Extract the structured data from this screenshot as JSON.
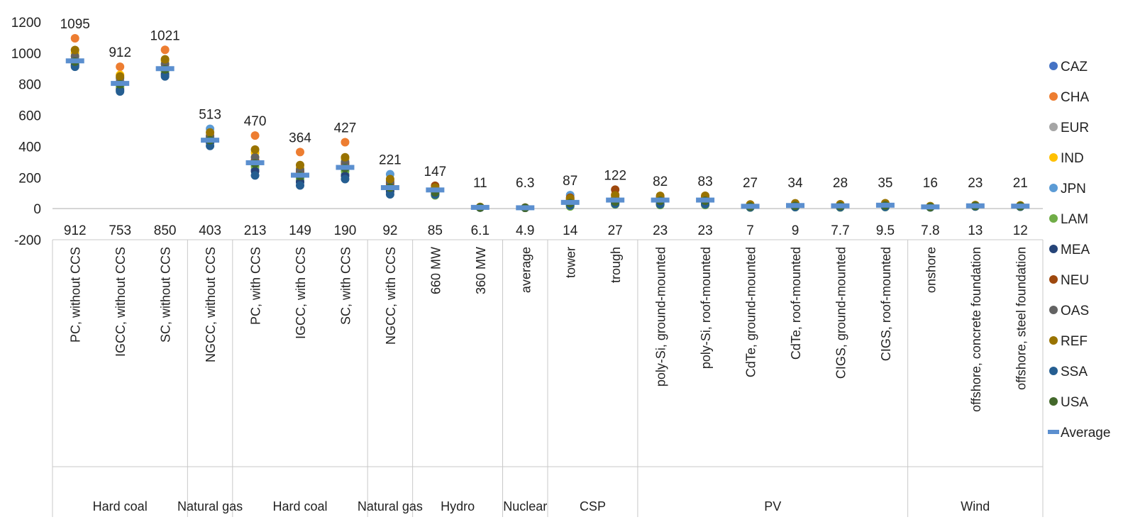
{
  "chart_data": {
    "type": "scatter",
    "ylim": [
      -200,
      1200
    ],
    "yticks": [
      -200,
      0,
      200,
      400,
      600,
      800,
      1000,
      1200
    ],
    "grid": false,
    "legend_position": "right",
    "categories": [
      "PC, without CCS",
      "IGCC, without CCS",
      "SC, without CCS",
      "NGCC, without CCS",
      "PC, with CCS",
      "IGCC, with CCS",
      "SC, with CCS",
      "NGCC, with CCS",
      "660 MW",
      "360 MW",
      "average",
      "tower",
      "trough",
      "poly-Si, ground-mounted",
      "poly-Si, roof-mounted",
      "CdTe, ground-mounted",
      "CdTe, roof-mounted",
      "CIGS, ground-mounted",
      "CIGS, roof-mounted",
      "onshore",
      "offshore, concrete foundation",
      "offshore, steel foundation"
    ],
    "groups": [
      {
        "label": "Hard coal",
        "count": 3
      },
      {
        "label": "Natural gas",
        "count": 1
      },
      {
        "label": "Hard coal",
        "count": 3
      },
      {
        "label": "Natural gas",
        "count": 1
      },
      {
        "label": "Hydro",
        "count": 2
      },
      {
        "label": "Nuclear",
        "count": 1
      },
      {
        "label": "CSP",
        "count": 2
      },
      {
        "label": "PV",
        "count": 6
      },
      {
        "label": "Wind",
        "count": 3
      }
    ],
    "max_labels": [
      "1095",
      "912",
      "1021",
      "513",
      "470",
      "364",
      "427",
      "221",
      "147",
      "11",
      "6.3",
      "87",
      "122",
      "82",
      "83",
      "27",
      "34",
      "28",
      "35",
      "16",
      "23",
      "21"
    ],
    "min_labels": [
      "912",
      "753",
      "850",
      "403",
      "213",
      "149",
      "190",
      "92",
      "85",
      "6.1",
      "4.9",
      "14",
      "27",
      "23",
      "23",
      "7",
      "9",
      "7.7",
      "9.5",
      "7.8",
      "13",
      "12"
    ],
    "max": [
      1095,
      912,
      1021,
      513,
      470,
      364,
      427,
      221,
      147,
      11,
      6.3,
      87,
      122,
      82,
      83,
      27,
      34,
      28,
      35,
      16,
      23,
      21
    ],
    "min": [
      912,
      753,
      850,
      403,
      213,
      149,
      190,
      92,
      85,
      6.1,
      4.9,
      14,
      27,
      23,
      23,
      7,
      9,
      7.7,
      9.5,
      7.8,
      13,
      12
    ],
    "average": [
      950,
      805,
      900,
      440,
      295,
      215,
      265,
      135,
      120,
      8,
      5.5,
      40,
      55,
      55,
      55,
      15,
      20,
      18,
      22,
      11,
      18,
      16
    ],
    "series": [
      {
        "name": "CAZ",
        "color": "#4472C4",
        "values": [
          925,
          770,
          870,
          430,
          250,
          180,
          220,
          120,
          100,
          7,
          5,
          30,
          40,
          40,
          40,
          12,
          14,
          13,
          16,
          10,
          16,
          14
        ]
      },
      {
        "name": "CHA",
        "color": "#ED7D31",
        "values": [
          1095,
          912,
          1021,
          470,
          470,
          364,
          427,
          180,
          130,
          9,
          6,
          60,
          90,
          70,
          70,
          20,
          25,
          22,
          26,
          13,
          20,
          18
        ]
      },
      {
        "name": "EUR",
        "color": "#A5A5A5",
        "values": [
          960,
          820,
          910,
          450,
          300,
          230,
          280,
          140,
          115,
          8,
          5.5,
          45,
          60,
          55,
          55,
          16,
          20,
          18,
          22,
          11,
          18,
          16
        ]
      },
      {
        "name": "IND",
        "color": "#FFC000",
        "values": [
          1000,
          860,
          950,
          460,
          360,
          260,
          320,
          150,
          125,
          8.5,
          5.8,
          50,
          65,
          65,
          65,
          18,
          22,
          19,
          24,
          12,
          19,
          17
        ]
      },
      {
        "name": "JPN",
        "color": "#5B9BD5",
        "values": [
          940,
          790,
          890,
          513,
          280,
          200,
          250,
          221,
          110,
          7.5,
          5.2,
          87,
          50,
          45,
          45,
          13,
          17,
          15,
          18,
          10,
          17,
          15
        ]
      },
      {
        "name": "LAM",
        "color": "#70AD47",
        "values": [
          935,
          780,
          880,
          445,
          270,
          190,
          240,
          130,
          85,
          7,
          5,
          14,
          27,
          23,
          23,
          7,
          9,
          7.7,
          9.5,
          7.8,
          13,
          12
        ]
      },
      {
        "name": "MEA",
        "color": "#264478",
        "values": [
          920,
          760,
          860,
          425,
          240,
          170,
          210,
          110,
          95,
          6.5,
          4.9,
          25,
          35,
          30,
          30,
          9,
          11,
          10,
          12,
          9,
          14,
          13
        ]
      },
      {
        "name": "NEU",
        "color": "#9E480E",
        "values": [
          955,
          810,
          905,
          455,
          310,
          240,
          290,
          160,
          147,
          10,
          6.1,
          70,
          122,
          75,
          75,
          22,
          28,
          24,
          30,
          14,
          21,
          19
        ]
      },
      {
        "name": "OAS",
        "color": "#636363",
        "values": [
          980,
          840,
          930,
          465,
          330,
          250,
          300,
          170,
          120,
          8,
          5.6,
          55,
          70,
          60,
          60,
          17,
          21,
          18,
          23,
          11,
          18,
          16
        ]
      },
      {
        "name": "REF",
        "color": "#997300",
        "values": [
          1020,
          850,
          960,
          490,
          380,
          280,
          330,
          190,
          135,
          11,
          6.3,
          65,
          85,
          82,
          83,
          27,
          34,
          28,
          35,
          16,
          23,
          21
        ]
      },
      {
        "name": "SSA",
        "color": "#255E91",
        "values": [
          912,
          753,
          850,
          403,
          213,
          149,
          190,
          92,
          90,
          6.1,
          5,
          20,
          30,
          28,
          28,
          8,
          10,
          9,
          11,
          8,
          14,
          12
        ]
      },
      {
        "name": "USA",
        "color": "#43682B",
        "values": [
          945,
          800,
          895,
          440,
          290,
          210,
          260,
          135,
          105,
          7,
          5.3,
          35,
          45,
          50,
          50,
          14,
          18,
          16,
          20,
          10,
          17,
          15
        ]
      }
    ],
    "average_series": {
      "name": "Average",
      "color": "#5B8FCF"
    }
  }
}
